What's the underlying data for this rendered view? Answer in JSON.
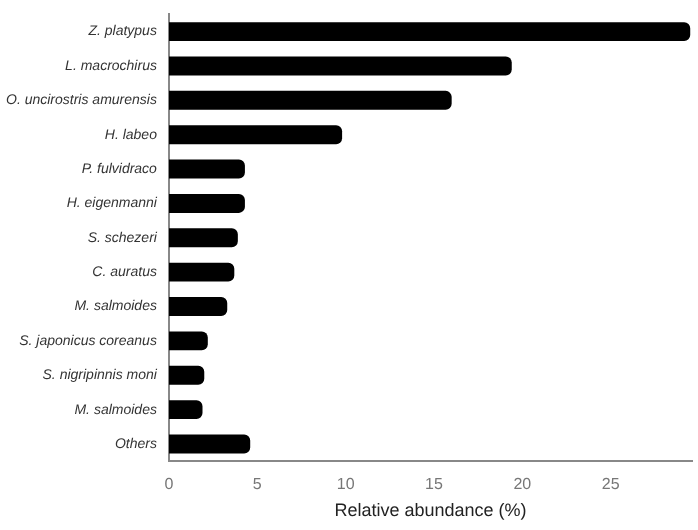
{
  "chart_data": {
    "type": "bar",
    "orientation": "horizontal",
    "xlabel": "Relative abundance (%)",
    "categories": [
      "Z. platypus",
      "L. macrochirus",
      "O. uncirostris amurensis",
      "H. labeo",
      "P. fulvidraco",
      "H. eigenmanni",
      "S. schezeri",
      "C. auratus",
      "M. salmoides",
      "S. japonicus coreanus",
      "S. nigripinnis moni",
      "M. salmoides",
      "Others"
    ],
    "values": [
      29.5,
      19.4,
      16.0,
      9.8,
      4.3,
      4.3,
      3.9,
      3.7,
      3.3,
      2.2,
      2.0,
      1.9,
      4.6
    ],
    "color": "#000000",
    "xlim": [
      0,
      29.6
    ],
    "xticks": [
      0,
      5,
      10,
      15,
      20,
      25
    ],
    "grid": false,
    "legend": false
  }
}
